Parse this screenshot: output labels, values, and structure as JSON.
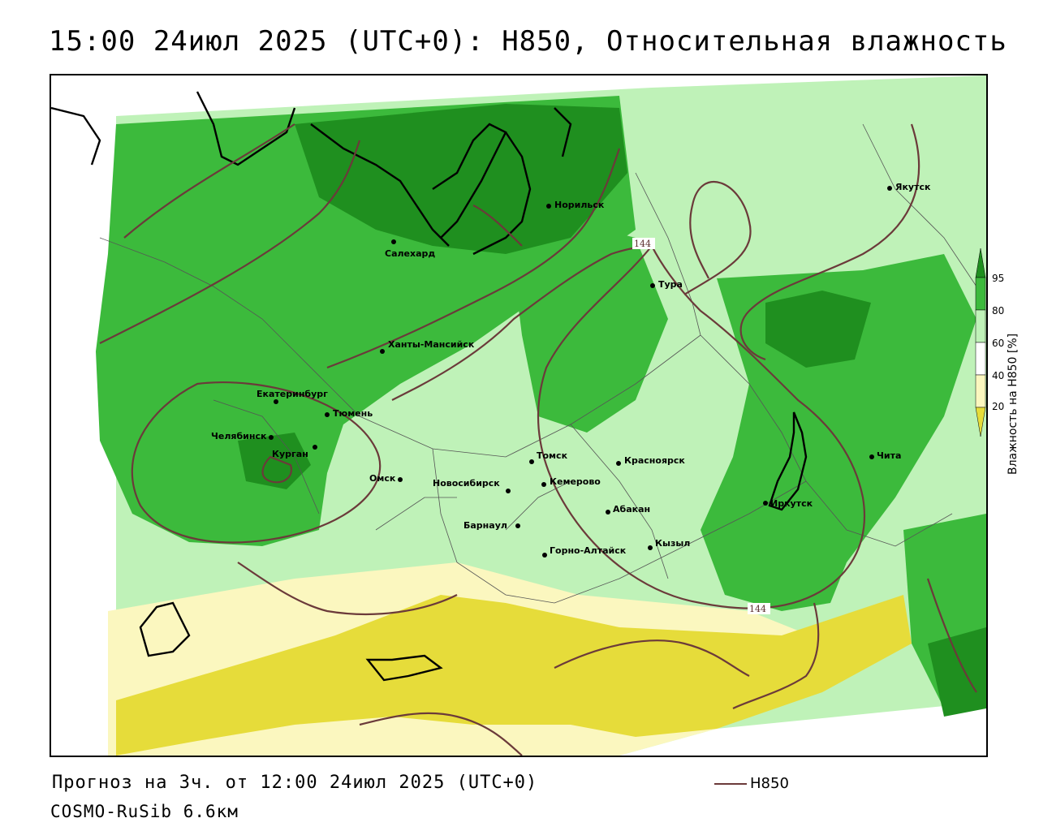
{
  "title": "15:00 24июл 2025 (UTC+0): H850, Относительная влажность",
  "footer": {
    "forecast": "Прогноз на 3ч. от 12:00 24июл 2025 (UTC+0)",
    "model": "COSMO-RuSib 6.6км"
  },
  "legend": {
    "line_label": "H850"
  },
  "colorbar": {
    "title": "Влажность на H850 [%]",
    "ticks": [
      "95",
      "80",
      "60",
      "40",
      "20"
    ],
    "colors": {
      "dark_green": "#1f8f1f",
      "green": "#3cba3c",
      "light_green": "#bff2b8",
      "pale_yellow": "#fbf7bf",
      "yellow": "#e6dc3a"
    }
  },
  "isolines": {
    "label_1": "144",
    "label_2": "144",
    "color": "#6b3a3a"
  },
  "cities": [
    {
      "name": "Якутск"
    },
    {
      "name": "Норильск"
    },
    {
      "name": "Салехард"
    },
    {
      "name": "Тура"
    },
    {
      "name": "Ханты-Мансийск"
    },
    {
      "name": "Екатеринбург"
    },
    {
      "name": "Тюмень"
    },
    {
      "name": "Челябинск"
    },
    {
      "name": "Курган"
    },
    {
      "name": "Омск"
    },
    {
      "name": "Новосибирск"
    },
    {
      "name": "Томск"
    },
    {
      "name": "Кемерово"
    },
    {
      "name": "Красноярск"
    },
    {
      "name": "Абакан"
    },
    {
      "name": "Барнаул"
    },
    {
      "name": "Горно-Алтайск"
    },
    {
      "name": "Кызыл"
    },
    {
      "name": "Иркутск"
    },
    {
      "name": "Чита"
    }
  ]
}
